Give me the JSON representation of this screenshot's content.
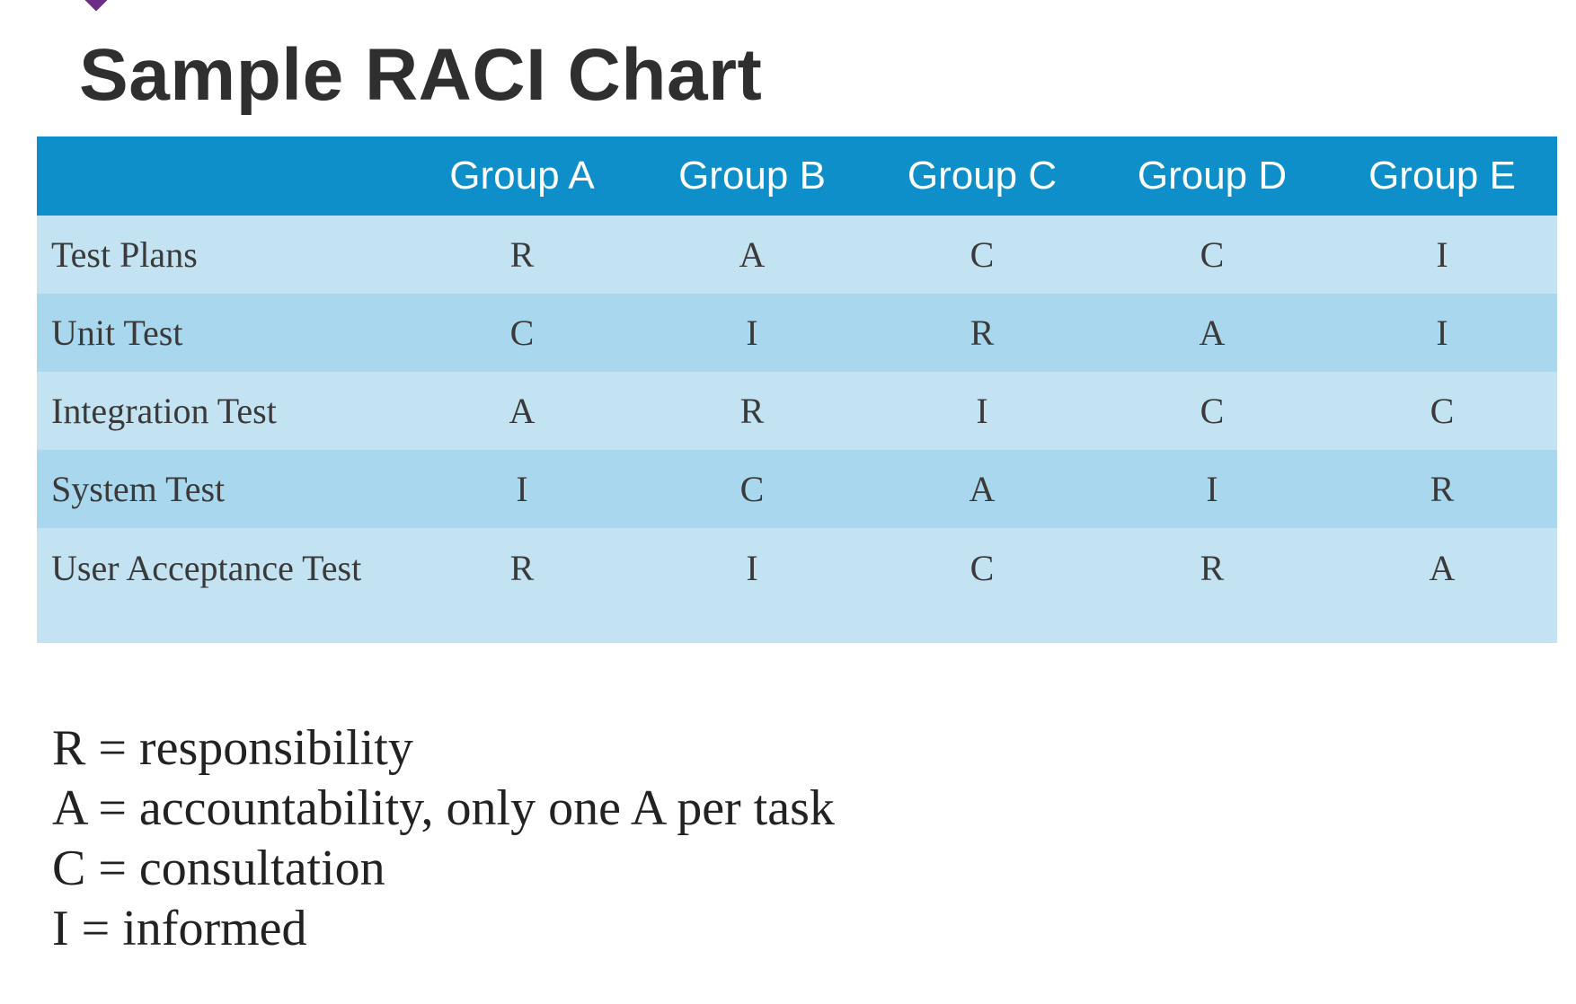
{
  "title": "Sample RACI Chart",
  "table": {
    "header": [
      "",
      "Group A",
      "Group B",
      "Group C",
      "Group D",
      "Group E"
    ],
    "rows": [
      {
        "task": "Test Plans",
        "values": [
          "R",
          "A",
          "C",
          "C",
          "I"
        ]
      },
      {
        "task": "Unit Test",
        "values": [
          "C",
          "I",
          "R",
          "A",
          "I"
        ]
      },
      {
        "task": "Integration Test",
        "values": [
          "A",
          "R",
          "I",
          "C",
          "C"
        ]
      },
      {
        "task": "System Test",
        "values": [
          "I",
          "C",
          "A",
          "I",
          "R"
        ]
      },
      {
        "task": "User Acceptance Test",
        "values": [
          "R",
          "I",
          "C",
          "R",
          "A"
        ]
      }
    ]
  },
  "legend": [
    "R = responsibility",
    "A = accountability, only one A per task",
    "C = consultation",
    "I = informed"
  ],
  "colors": {
    "header_bg": "#0e8fc9",
    "row_light": "#c3e3f3",
    "row_dark": "#a9d8ee",
    "accent": "#6b2d86"
  }
}
